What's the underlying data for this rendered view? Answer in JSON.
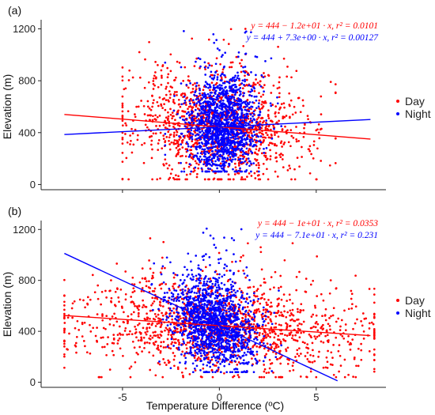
{
  "colors": {
    "day": "#ff0000",
    "night": "#0000ff",
    "axis": "#222222"
  },
  "chart_data": [
    {
      "type": "scatter",
      "panel_label": "(a)",
      "xlim": [
        -9.2,
        8.6
      ],
      "ylim": [
        -40,
        1270
      ],
      "x_ticks": [
        -5,
        0,
        5
      ],
      "x_tick_labels": [
        "",
        "",
        ""
      ],
      "y_ticks": [
        0,
        400,
        800,
        1200
      ],
      "y_tick_labels": [
        "0",
        "400",
        "800",
        "1200"
      ],
      "ylabel": "Elevation (m)",
      "xlabel": "",
      "grid": false,
      "legend": {
        "position": "right",
        "entries": [
          "Day",
          "Night"
        ]
      },
      "series": [
        {
          "name": "Day",
          "color": "#ff0000",
          "equation": "y = 444 − 1.2e+01 · x,  r² = 0.0101",
          "intercept": 444,
          "slope": -12,
          "cloud": {
            "x_center": 0,
            "x_spread": 2.4,
            "x_range": [
              -5,
              6
            ],
            "y_center": 470,
            "y_spread": 210,
            "y_range": [
              40,
              1200
            ],
            "count": 1300
          }
        },
        {
          "name": "Night",
          "color": "#0000ff",
          "equation": "y = 444 + 7.3e+00 · x,  r² = 0.00127",
          "intercept": 444,
          "slope": 7.3,
          "cloud": {
            "x_center": 0.2,
            "x_spread": 0.9,
            "x_range": [
              -2.8,
              3.2
            ],
            "y_center": 470,
            "y_spread": 190,
            "y_range": [
              100,
              1200
            ],
            "count": 1500
          }
        }
      ],
      "line_x_range": [
        -8,
        7.8
      ]
    },
    {
      "type": "scatter",
      "panel_label": "(b)",
      "xlim": [
        -9.2,
        8.6
      ],
      "ylim": [
        -40,
        1270
      ],
      "x_ticks": [
        -5,
        0,
        5
      ],
      "x_tick_labels": [
        "-5",
        "0",
        "5"
      ],
      "y_ticks": [
        0,
        400,
        800,
        1200
      ],
      "y_tick_labels": [
        "0",
        "400",
        "800",
        "1200"
      ],
      "ylabel": "Elevation (m)",
      "xlabel": "Temperature Difference (ºC)",
      "grid": false,
      "legend": {
        "position": "right",
        "entries": [
          "Day",
          "Night"
        ]
      },
      "series": [
        {
          "name": "Day",
          "color": "#ff0000",
          "equation": "y = 444 − 1e+01 · x,  r² = 0.0353",
          "intercept": 444,
          "slope": -10,
          "cloud": {
            "x_center": 0,
            "x_spread": 3.8,
            "x_range": [
              -8,
              8
            ],
            "y_center": 430,
            "y_spread": 180,
            "y_range": [
              40,
              1150
            ],
            "count": 1500
          }
        },
        {
          "name": "Night",
          "color": "#0000ff",
          "equation": "y = 444 − 7.1e+01 · x,  r² = 0.231",
          "intercept": 444,
          "slope": -71,
          "cloud": {
            "x_center": -0.3,
            "x_spread": 1.1,
            "x_range": [
              -3.5,
              3.2
            ],
            "y_center": 460,
            "y_spread": 180,
            "y_range": [
              80,
              1220
            ],
            "count": 1500
          }
        }
      ],
      "line_x_range": [
        -8,
        6.1
      ]
    }
  ]
}
